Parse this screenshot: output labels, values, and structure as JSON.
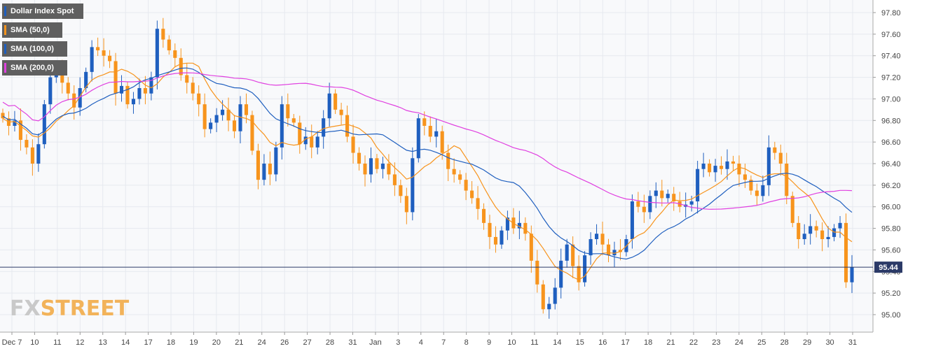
{
  "legend": [
    {
      "label": "Dollar Index Spot",
      "color": "#1f5fbf"
    },
    {
      "label": "SMA (50,0)",
      "color": "#f7941d"
    },
    {
      "label": "SMA (100,0)",
      "color": "#1f5fbf"
    },
    {
      "label": "SMA (200,0)",
      "color": "#e040e0"
    }
  ],
  "watermark": {
    "part1": "FX",
    "part2": "STREET"
  },
  "colors": {
    "up": "#1f5fbf",
    "down": "#f7941d",
    "sma50": "#f7941d",
    "sma100": "#1f5fbf",
    "sma200": "#e040e0",
    "price_line": "#2b3a67",
    "grid": "#e6e9ef",
    "plot_bg": "#f8f9fb"
  },
  "chart_data": {
    "type": "candlestick",
    "title": "",
    "xlabel": "",
    "ylabel": "",
    "ylim": [
      94.9,
      97.9
    ],
    "y_ticks": [
      "97.80",
      "97.60",
      "97.40",
      "97.20",
      "97.00",
      "96.80",
      "96.60",
      "96.40",
      "96.20",
      "96.00",
      "95.80",
      "95.60",
      "95.40",
      "95.20",
      "95.00"
    ],
    "x_labels": [
      "Dec 7",
      "10",
      "11",
      "12",
      "13",
      "14",
      "17",
      "18",
      "19",
      "20",
      "21",
      "24",
      "26",
      "27",
      "28",
      "31",
      "Jan",
      "3",
      "4",
      "7",
      "8",
      "9",
      "10",
      "11",
      "14",
      "15",
      "16",
      "17",
      "18",
      "21",
      "22",
      "23",
      "24",
      "25",
      "28",
      "29",
      "30",
      "31"
    ],
    "current_price": "95.44",
    "grid": true,
    "candle_closes": [
      96.82,
      96.75,
      96.8,
      96.62,
      96.55,
      96.4,
      96.58,
      96.95,
      97.2,
      97.25,
      97.15,
      97.05,
      96.92,
      97.1,
      97.25,
      97.48,
      97.45,
      97.4,
      97.35,
      97.05,
      97.12,
      96.95,
      97.0,
      97.1,
      97.05,
      97.2,
      97.65,
      97.55,
      97.45,
      97.38,
      97.22,
      97.15,
      97.05,
      96.95,
      96.72,
      96.78,
      96.85,
      96.9,
      96.8,
      96.7,
      96.95,
      96.85,
      96.52,
      96.25,
      96.4,
      96.3,
      96.55,
      96.95,
      96.82,
      96.78,
      96.58,
      96.65,
      96.55,
      96.65,
      96.82,
      97.05,
      96.9,
      96.85,
      96.65,
      96.5,
      96.4,
      96.3,
      96.45,
      96.35,
      96.4,
      96.3,
      96.2,
      96.1,
      95.95,
      96.45,
      96.82,
      96.75,
      96.65,
      96.7,
      96.5,
      96.35,
      96.3,
      96.25,
      96.15,
      96.08,
      95.98,
      95.85,
      95.72,
      95.65,
      95.78,
      95.9,
      95.8,
      95.85,
      95.75,
      95.5,
      95.28,
      95.05,
      95.1,
      95.25,
      95.5,
      95.65,
      95.45,
      95.3,
      95.55,
      95.7,
      95.75,
      95.65,
      95.55,
      95.6,
      95.58,
      95.7,
      96.05,
      96.0,
      95.95,
      96.1,
      96.15,
      96.08,
      96.12,
      96.05,
      96.0,
      96.02,
      96.05,
      96.35,
      96.4,
      96.32,
      96.38,
      96.35,
      96.42,
      96.4,
      96.3,
      96.25,
      96.15,
      96.1,
      96.2,
      96.55,
      96.5,
      96.4,
      96.1,
      95.85,
      95.7,
      95.75,
      95.82,
      95.78,
      95.7,
      95.72,
      95.8,
      95.85,
      95.3,
      95.44
    ]
  }
}
